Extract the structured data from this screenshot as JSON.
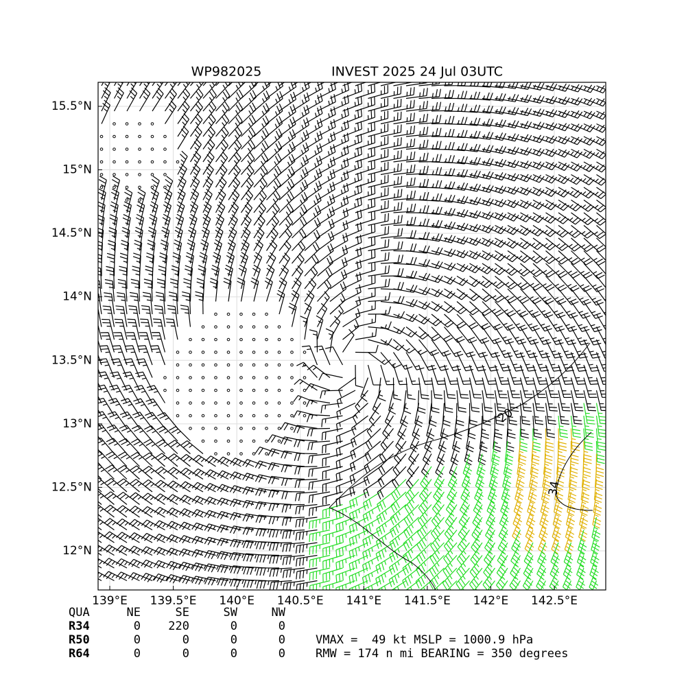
{
  "header": {
    "title_left": "WP982025",
    "title_right": "INVEST 2025 24 Jul 03UTC"
  },
  "map": {
    "xlim": [
      138.908,
      142.905
    ],
    "ylim": [
      11.692,
      15.689
    ],
    "xticks": [
      {
        "value": 139,
        "label": "139°E"
      },
      {
        "value": 139.5,
        "label": "139.5°E"
      },
      {
        "value": 140,
        "label": "140°E"
      },
      {
        "value": 140.5,
        "label": "140.5°E"
      },
      {
        "value": 141,
        "label": "141°E"
      },
      {
        "value": 141.5,
        "label": "141.5°E"
      },
      {
        "value": 142,
        "label": "142°E"
      },
      {
        "value": 142.5,
        "label": "142.5°E"
      }
    ],
    "yticks": [
      {
        "value": 12,
        "label": "12°N"
      },
      {
        "value": 12.5,
        "label": "12.5°N"
      },
      {
        "value": 13,
        "label": "13°N"
      },
      {
        "value": 13.5,
        "label": "13.5°N"
      },
      {
        "value": 14,
        "label": "14°N"
      },
      {
        "value": 14.5,
        "label": "14.5°N"
      },
      {
        "value": 15,
        "label": "15°N"
      },
      {
        "value": 15.5,
        "label": "15.5°N"
      }
    ],
    "grid": true,
    "contour_labels": [
      "20",
      "34"
    ]
  },
  "table": {
    "header": [
      "QUA",
      "NE",
      "SE",
      "SW",
      "NW"
    ],
    "rows": [
      [
        "R34",
        0,
        220,
        0,
        0
      ],
      [
        "R50",
        0,
        0,
        0,
        0
      ],
      [
        "R64",
        0,
        0,
        0,
        0
      ]
    ]
  },
  "stats": [
    "VMAX =  49 kt MSLP = 1000.9 hPa",
    "RMW = 174 n mi BEARING = 350 degrees"
  ]
}
